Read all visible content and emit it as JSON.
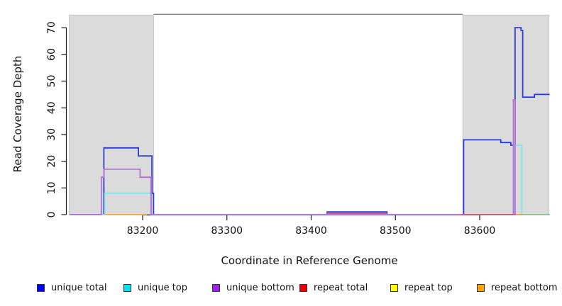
{
  "figure": {
    "background": "#ffffff",
    "masked_region_fill": "#dbdbdb",
    "masked_region_border": "#c6c6c6",
    "axis_color": "#1a1a1a"
  },
  "legend": {
    "items": [
      {
        "label": "unique total",
        "color": "#0000ff"
      },
      {
        "label": "unique top",
        "color": "#00e5ee"
      },
      {
        "label": "unique bottom",
        "color": "#a020f0"
      },
      {
        "label": "repeat total",
        "color": "#ee0000"
      },
      {
        "label": "repeat top",
        "color": "#ffff00"
      },
      {
        "label": "repeat bottom",
        "color": "#ffa500"
      }
    ]
  },
  "chart_data": {
    "type": "line",
    "title": "",
    "xlabel": "Coordinate in Reference Genome",
    "ylabel": "Read Coverage Depth",
    "xlim": [
      83113,
      83683
    ],
    "ylim": [
      0,
      75
    ],
    "x_ticks": [
      83200,
      83300,
      83400,
      83500,
      83600
    ],
    "y_ticks": [
      0,
      10,
      20,
      30,
      40,
      50,
      60,
      70
    ],
    "grid": false,
    "legend_position": "bottom",
    "masked_regions": [
      {
        "x1": 83113,
        "x2": 83213
      },
      {
        "x1": 83580,
        "x2": 83682
      }
    ],
    "top_boundary_line": {
      "x1": 83213,
      "x2": 83580,
      "depth": 75,
      "color": "#8c8c8c"
    },
    "series": [
      {
        "name": "unique total",
        "color": "#2b3bdf",
        "paths": [
          [
            [
              83113,
              0
            ],
            [
              83154,
              0
            ],
            [
              83154,
              25
            ],
            [
              83195,
              25
            ],
            [
              83195,
              22
            ],
            [
              83211,
              22
            ],
            [
              83211,
              8
            ],
            [
              83213,
              8
            ],
            [
              83213,
              0
            ],
            [
              83419,
              0
            ],
            [
              83419,
              1
            ],
            [
              83490,
              1
            ],
            [
              83490,
              0
            ],
            [
              83581,
              0
            ],
            [
              83581,
              28
            ],
            [
              83625,
              28
            ],
            [
              83625,
              27
            ],
            [
              83637,
              27
            ],
            [
              83637,
              26
            ],
            [
              83642,
              26
            ],
            [
              83642,
              70
            ],
            [
              83649,
              70
            ],
            [
              83649,
              69
            ],
            [
              83651,
              69
            ],
            [
              83651,
              44
            ],
            [
              83665,
              44
            ],
            [
              83665,
              45
            ],
            [
              83683,
              45
            ]
          ]
        ]
      },
      {
        "name": "unique top",
        "color": "#7de8f0",
        "paths": [
          [
            [
              83113,
              0
            ],
            [
              83155,
              0
            ],
            [
              83155,
              8
            ],
            [
              83210,
              8
            ],
            [
              83210,
              0
            ],
            [
              83641,
              0
            ],
            [
              83641,
              26
            ],
            [
              83650,
              26
            ],
            [
              83650,
              0
            ],
            [
              83683,
              0
            ]
          ]
        ]
      },
      {
        "name": "unique bottom",
        "color": "#b56fd9",
        "paths": [
          [
            [
              83113,
              0
            ],
            [
              83151,
              0
            ],
            [
              83151,
              14
            ],
            [
              83154,
              14
            ],
            [
              83154,
              17
            ],
            [
              83197,
              17
            ],
            [
              83197,
              14
            ],
            [
              83210,
              14
            ],
            [
              83210,
              0
            ],
            [
              83640,
              0
            ],
            [
              83640,
              43
            ],
            [
              83642,
              43
            ],
            [
              83642,
              0
            ],
            [
              83683,
              0
            ]
          ]
        ]
      },
      {
        "name": "repeat total",
        "color": "#d8566e",
        "paths": [
          [
            [
              83419,
              0.5
            ],
            [
              83490,
              0.5
            ]
          ],
          [
            [
              83578,
              0
            ],
            [
              83643,
              0
            ]
          ]
        ]
      },
      {
        "name": "repeat bottom",
        "color": "#ffa426",
        "paths": [
          [
            [
              83155,
              0
            ],
            [
              83205,
              0
            ]
          ],
          [
            [
              83643,
              0
            ],
            [
              83651,
              0
            ]
          ]
        ]
      }
    ],
    "baseline_overlap_segment": {
      "color": "#8fce8f",
      "path": [
        [
          83651,
          0
        ],
        [
          83682,
          0
        ]
      ]
    }
  }
}
